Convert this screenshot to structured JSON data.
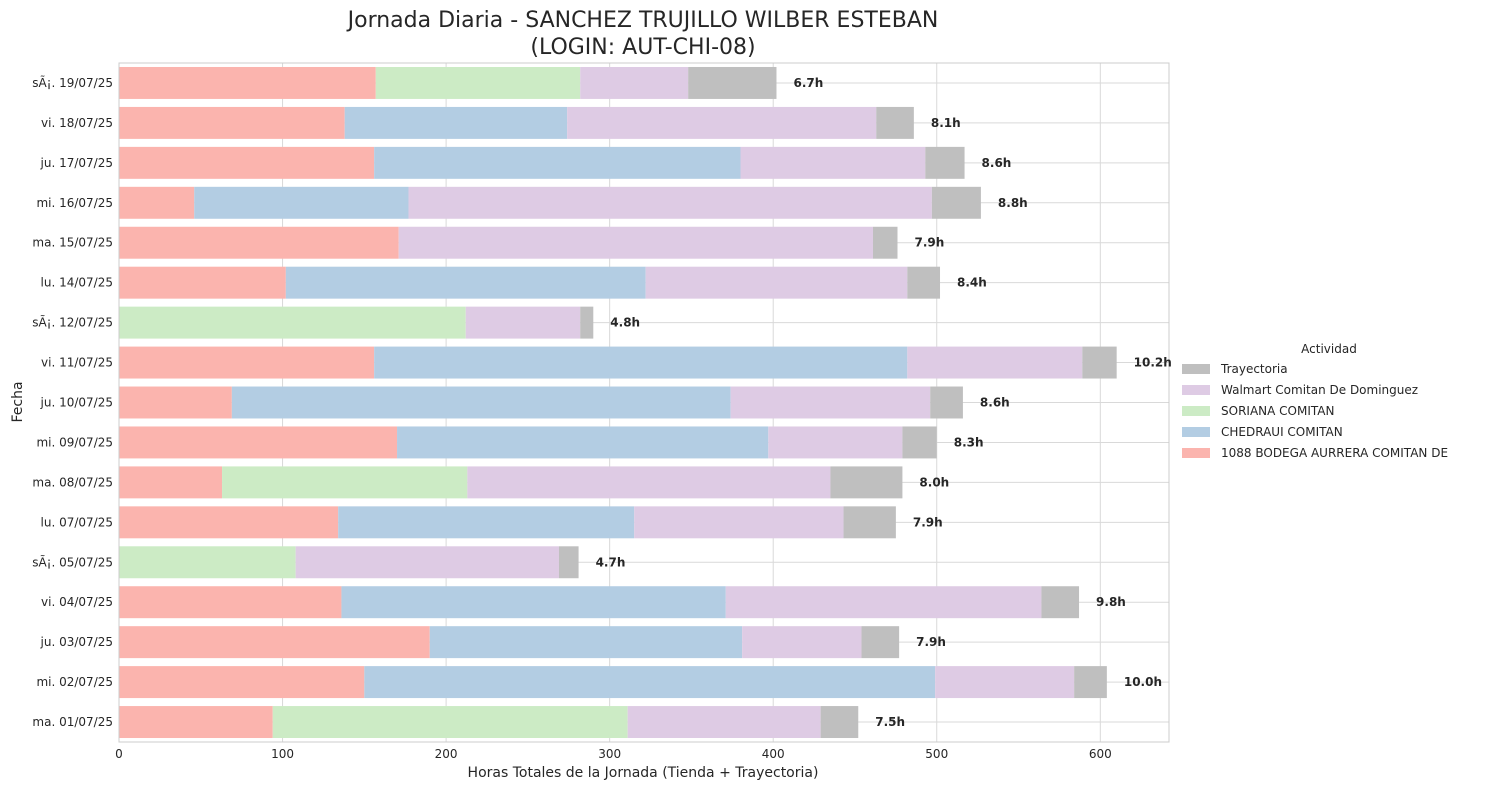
{
  "chart_data": {
    "type": "bar",
    "orientation": "horizontal",
    "stacked": true,
    "title_line1": "Jornada Diaria - SANCHEZ TRUJILLO WILBER ESTEBAN",
    "title_line2": "(LOGIN: AUT-CHI-08)",
    "xlabel": "Horas Totales de la Jornada (Tienda + Trayectoria)",
    "ylabel": "Fecha",
    "xlim": [
      0,
      642
    ],
    "xticks": [
      0,
      100,
      200,
      300,
      400,
      500,
      600
    ],
    "grid": true,
    "legend_position": "center-right",
    "legend_title": "Actividad",
    "categories": [
      "sÃ¡. 19/07/25",
      "vi. 18/07/25",
      "ju. 17/07/25",
      "mi. 16/07/25",
      "ma. 15/07/25",
      "lu. 14/07/25",
      "sÃ¡. 12/07/25",
      "vi. 11/07/25",
      "ju. 10/07/25",
      "mi. 09/07/25",
      "ma. 08/07/25",
      "lu. 07/07/25",
      "sÃ¡. 05/07/25",
      "vi. 04/07/25",
      "ju. 03/07/25",
      "mi. 02/07/25",
      "ma. 01/07/25"
    ],
    "series": [
      {
        "name": "1088 BODEGA AURRERA COMITAN DE",
        "color": "#fbb4ae",
        "values": [
          157,
          138,
          156,
          46,
          171,
          102,
          0,
          156,
          69,
          170,
          63,
          134,
          0,
          136,
          190,
          150,
          94
        ]
      },
      {
        "name": "CHEDRAUI COMITAN",
        "color": "#b3cde3",
        "values": [
          0,
          136,
          224,
          131,
          0,
          220,
          0,
          326,
          305,
          227,
          0,
          181,
          0,
          235,
          191,
          349,
          0
        ]
      },
      {
        "name": "SORIANA COMITAN",
        "color": "#ccebc5",
        "values": [
          125,
          0,
          0,
          0,
          0,
          0,
          212,
          0,
          0,
          0,
          150,
          0,
          108,
          0,
          0,
          0,
          217
        ]
      },
      {
        "name": "Walmart Comitan De Dominguez",
        "color": "#decbe4",
        "values": [
          66,
          189,
          113,
          320,
          290,
          160,
          70,
          107,
          122,
          82,
          222,
          128,
          161,
          193,
          73,
          85,
          118
        ]
      },
      {
        "name": "Trayectoria",
        "color": "#bfbfbf",
        "values": [
          54,
          23,
          24,
          30,
          15,
          20,
          8,
          21,
          20,
          21,
          44,
          32,
          12,
          23,
          23,
          20,
          23
        ]
      }
    ],
    "bar_labels": [
      "6.7h",
      "8.1h",
      "8.6h",
      "8.8h",
      "7.9h",
      "8.4h",
      "4.8h",
      "10.2h",
      "8.6h",
      "8.3h",
      "8.0h",
      "7.9h",
      "4.7h",
      "9.8h",
      "7.9h",
      "10.0h",
      "7.5h"
    ],
    "legend_order": [
      "Trayectoria",
      "Walmart Comitan De Dominguez",
      "SORIANA COMITAN",
      "CHEDRAUI COMITAN",
      "1088 BODEGA AURRERA COMITAN DE"
    ]
  }
}
